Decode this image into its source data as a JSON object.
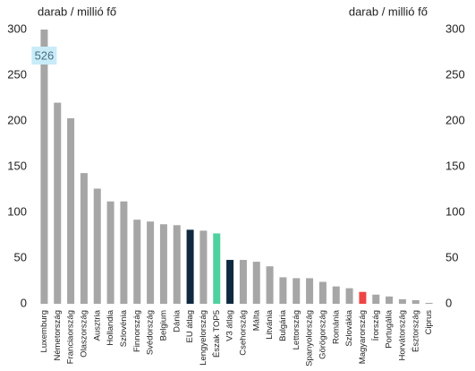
{
  "chart_data": {
    "type": "bar",
    "ylabel": "darab / millió fő",
    "y2label": "darab / millió fő",
    "categories": [
      "Luxemburg",
      "Németország",
      "Franciaország",
      "Olaszország",
      "Ausztria",
      "Hollandia",
      "Szlovénia",
      "Finnország",
      "Svédország",
      "Belgium",
      "Dánia",
      "EU átlag",
      "Lengyelország",
      "Észak TOP5",
      "V3 átlag",
      "Csehország",
      "Málta",
      "Litvánia",
      "Bulgária",
      "Lettország",
      "Spanyolország",
      "Görögország",
      "Románia",
      "Szlovákia",
      "Magyarország",
      "Írország",
      "Portugália",
      "Horvátország",
      "Észtország",
      "Ciprus"
    ],
    "values": [
      526,
      220,
      203,
      143,
      126,
      112,
      112,
      92,
      90,
      87,
      86,
      81,
      80,
      77,
      48,
      48,
      46,
      41,
      29,
      28,
      28,
      24,
      19,
      17,
      13,
      10,
      8,
      5,
      4,
      1
    ],
    "value_labels": [
      "526",
      null,
      null,
      null,
      null,
      null,
      null,
      null,
      null,
      null,
      null,
      null,
      null,
      null,
      null,
      null,
      null,
      null,
      null,
      null,
      null,
      null,
      null,
      null,
      null,
      null,
      null,
      null,
      null,
      null
    ],
    "colors": [
      "#a6a6a6",
      "#a6a6a6",
      "#a6a6a6",
      "#a6a6a6",
      "#a6a6a6",
      "#a6a6a6",
      "#a6a6a6",
      "#a6a6a6",
      "#a6a6a6",
      "#a6a6a6",
      "#a6a6a6",
      "#0f2a40",
      "#a6a6a6",
      "#4fd1a0",
      "#0f2a40",
      "#a6a6a6",
      "#a6a6a6",
      "#a6a6a6",
      "#a6a6a6",
      "#a6a6a6",
      "#a6a6a6",
      "#a6a6a6",
      "#a6a6a6",
      "#a6a6a6",
      "#ef4444",
      "#a6a6a6",
      "#a6a6a6",
      "#a6a6a6",
      "#a6a6a6",
      "#a6a6a6"
    ],
    "ylim": [
      0,
      300
    ],
    "yticks": [
      0,
      50,
      100,
      150,
      200,
      250,
      300
    ],
    "y2lim": [
      0,
      300
    ],
    "y2ticks": [
      0,
      50,
      100,
      150,
      200,
      250,
      300
    ]
  }
}
